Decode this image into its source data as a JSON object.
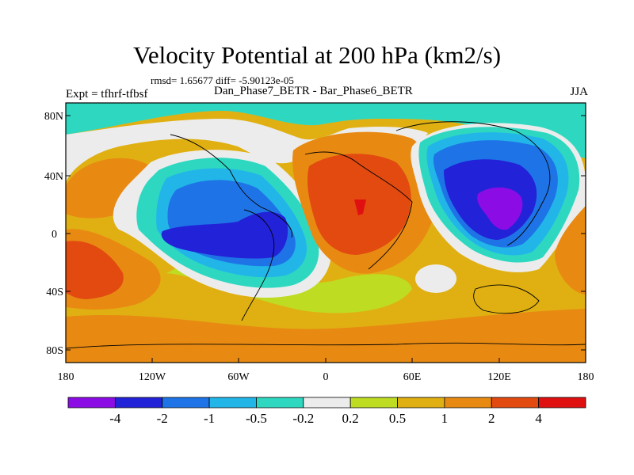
{
  "figure": {
    "title": "Velocity Potential at 200 hPa (km2/s)",
    "stats": "rmsd= 1.65677 diff= -5.90123e-05",
    "expt": "Expt = tfhrf-tfbsf",
    "cases": "Dan_Phase7_BETR - Bar_Phase6_BETR",
    "season": "JJA"
  },
  "axes": {
    "lat_labels": [
      "80N",
      "40N",
      "0",
      "40S",
      "80S"
    ],
    "lon_labels": [
      "180",
      "120W",
      "60W",
      "0",
      "60E",
      "120E",
      "180"
    ]
  },
  "colorbar": {
    "labels": [
      "-4",
      "-2",
      "-1",
      "-0.5",
      "-0.2",
      "0.2",
      "0.5",
      "1",
      "2",
      "4"
    ],
    "colors": [
      "#8c0ce6",
      "#2222d8",
      "#1e74e6",
      "#22b6e8",
      "#2ed8c0",
      "#ececec",
      "#bedc22",
      "#e0b012",
      "#e88a12",
      "#e24a10",
      "#e01010"
    ]
  }
}
